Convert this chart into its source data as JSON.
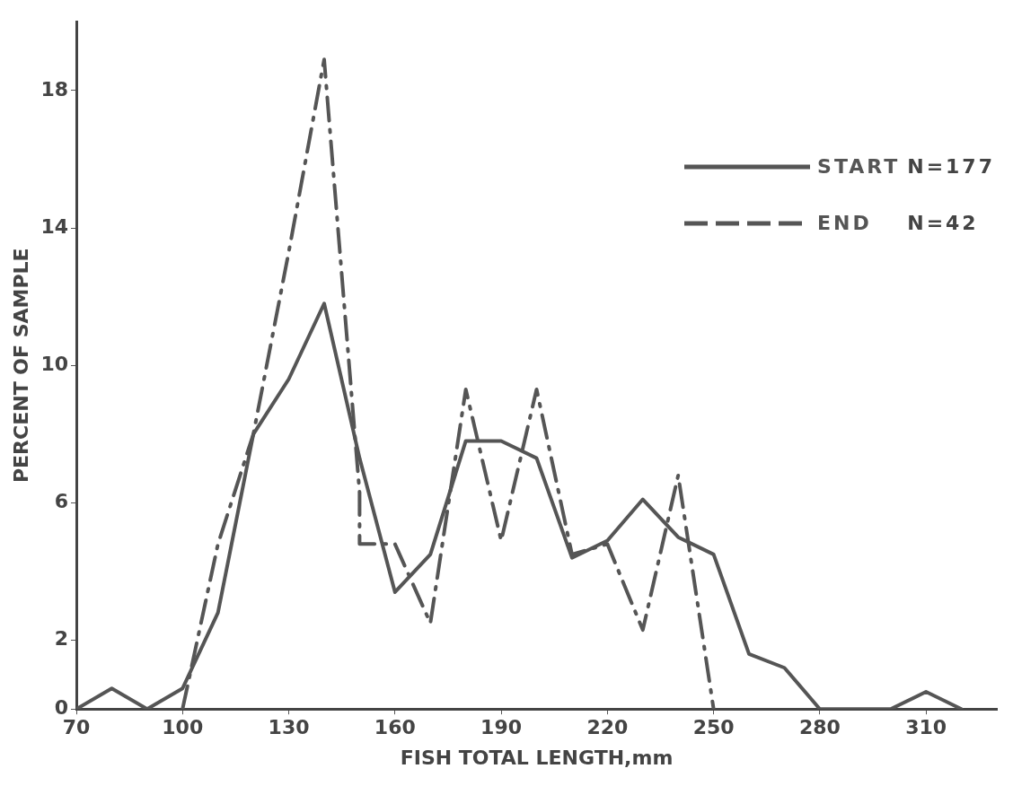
{
  "chart_data": {
    "type": "line",
    "xlabel": "FISH TOTAL LENGTH,mm",
    "ylabel": "PERCENT OF SAMPLE",
    "xlim": [
      70,
      330
    ],
    "xticks": [
      70,
      100,
      130,
      160,
      190,
      220,
      250,
      280,
      310
    ],
    "ylim": [
      0,
      20
    ],
    "yticks": [
      0,
      2,
      6,
      10,
      14,
      18
    ],
    "grid": false,
    "legend": "top right",
    "marker": "none",
    "series": [
      {
        "name": "START",
        "color": "#555555",
        "line_style": "solid",
        "x": [
          70,
          80,
          90,
          100,
          110,
          120,
          130,
          140,
          150,
          160,
          170,
          180,
          190,
          200,
          210,
          220,
          230,
          240,
          250,
          260,
          270,
          280,
          290,
          300,
          310,
          320
        ],
        "values": [
          0,
          0.6,
          0,
          0.6,
          2.8,
          8.0,
          9.6,
          11.8,
          7.3,
          3.4,
          4.5,
          7.8,
          7.8,
          7.3,
          4.4,
          4.9,
          6.1,
          5.0,
          4.5,
          1.6,
          1.2,
          0,
          0,
          0,
          0.5,
          0
        ]
      },
      {
        "name": "END",
        "color": "#555555",
        "line_style": "dashdot",
        "x": [
          100,
          110,
          120,
          130,
          140,
          150,
          150,
          160,
          170,
          180,
          190,
          200,
          210,
          220,
          230,
          240,
          250
        ],
        "values": [
          0,
          4.8,
          8.0,
          13.3,
          18.9,
          6.3,
          4.8,
          4.8,
          2.5,
          9.3,
          4.9,
          9.3,
          4.5,
          4.8,
          2.3,
          6.8,
          0
        ]
      }
    ],
    "annotations": [
      "N=177",
      "N=42"
    ]
  }
}
